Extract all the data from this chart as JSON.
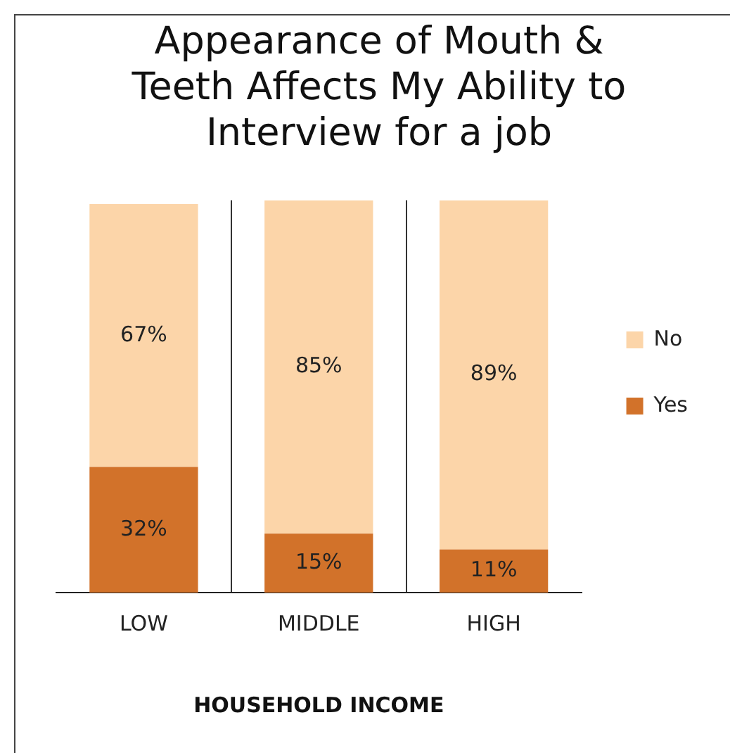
{
  "chart_data": {
    "type": "bar",
    "title": "Appearance of Mouth & Teeth Affects My Ability to Interview for a job",
    "xlabel": "HOUSEHOLD INCOME",
    "categories": [
      "LOW",
      "MIDDLE",
      "HIGH"
    ],
    "stacked": true,
    "legend": "right",
    "grid": "x",
    "series": [
      {
        "name": "Yes",
        "color": "#d2722a",
        "values": [
          32,
          15,
          11
        ],
        "value_labels": [
          "32%",
          "15%",
          "11%"
        ]
      },
      {
        "name": "No",
        "color": "#fcd5a9",
        "values": [
          67,
          85,
          89
        ],
        "value_labels": [
          "67%",
          "85%",
          "89%"
        ]
      }
    ]
  }
}
